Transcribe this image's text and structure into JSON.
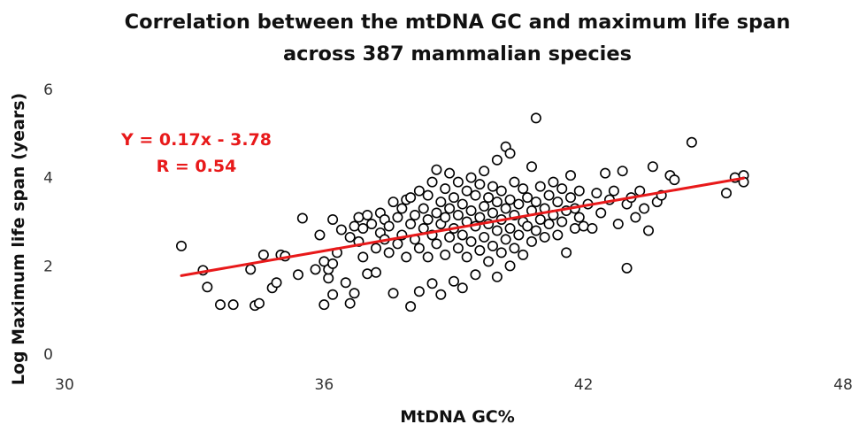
{
  "chart_data": {
    "type": "scatter",
    "title_line1": "Correlation between the mtDNA GC and maximum life span",
    "title_line2": "across 387 mammalian species",
    "xlabel": "MtDNA GC%",
    "ylabel": "Log Maximum life span (years)",
    "xlim": [
      30,
      48
    ],
    "ylim": [
      0,
      6
    ],
    "x_ticks": [
      30,
      36,
      42,
      48
    ],
    "y_ticks": [
      0,
      2,
      4,
      6
    ],
    "grid": false,
    "legend": "none",
    "point_style": "hollow circle",
    "colors": {
      "points": "#000000",
      "fit_line": "#e8191a",
      "annotation": "#e8191a"
    },
    "annotation_line1": "Y = 0.17x - 3.78",
    "annotation_line2": "R = 0.54",
    "fit_line": {
      "slope": 0.17,
      "intercept": -3.78,
      "x_range": [
        32.7,
        45.7
      ]
    },
    "points": [
      [
        32.7,
        2.45
      ],
      [
        33.2,
        1.9
      ],
      [
        33.3,
        1.52
      ],
      [
        33.6,
        1.12
      ],
      [
        33.9,
        1.12
      ],
      [
        34.3,
        1.92
      ],
      [
        34.4,
        1.1
      ],
      [
        34.5,
        1.15
      ],
      [
        34.6,
        2.25
      ],
      [
        34.8,
        1.5
      ],
      [
        34.9,
        1.62
      ],
      [
        35.0,
        2.25
      ],
      [
        35.1,
        2.22
      ],
      [
        35.4,
        1.8
      ],
      [
        35.5,
        3.08
      ],
      [
        35.8,
        1.92
      ],
      [
        35.9,
        2.7
      ],
      [
        36.0,
        2.1
      ],
      [
        36.0,
        1.12
      ],
      [
        36.1,
        1.72
      ],
      [
        36.1,
        1.92
      ],
      [
        36.2,
        1.35
      ],
      [
        36.2,
        2.05
      ],
      [
        36.2,
        3.05
      ],
      [
        36.3,
        2.3
      ],
      [
        36.4,
        2.82
      ],
      [
        36.5,
        1.62
      ],
      [
        36.6,
        2.65
      ],
      [
        36.6,
        1.15
      ],
      [
        36.7,
        2.9
      ],
      [
        36.7,
        1.38
      ],
      [
        36.8,
        3.1
      ],
      [
        36.8,
        2.55
      ],
      [
        36.9,
        2.85
      ],
      [
        36.9,
        2.2
      ],
      [
        37.0,
        1.82
      ],
      [
        37.0,
        3.15
      ],
      [
        37.1,
        2.95
      ],
      [
        37.2,
        2.4
      ],
      [
        37.2,
        1.85
      ],
      [
        37.3,
        2.75
      ],
      [
        37.3,
        3.2
      ],
      [
        37.4,
        2.6
      ],
      [
        37.4,
        3.05
      ],
      [
        37.5,
        2.3
      ],
      [
        37.5,
        2.9
      ],
      [
        37.6,
        3.45
      ],
      [
        37.6,
        1.38
      ],
      [
        37.7,
        2.5
      ],
      [
        37.7,
        3.1
      ],
      [
        37.8,
        2.7
      ],
      [
        37.8,
        3.3
      ],
      [
        37.9,
        2.2
      ],
      [
        37.9,
        3.5
      ],
      [
        38.0,
        1.08
      ],
      [
        38.0,
        2.95
      ],
      [
        38.0,
        3.55
      ],
      [
        38.1,
        2.6
      ],
      [
        38.1,
        3.15
      ],
      [
        38.2,
        1.42
      ],
      [
        38.2,
        2.4
      ],
      [
        38.2,
        3.7
      ],
      [
        38.3,
        2.85
      ],
      [
        38.3,
        3.3
      ],
      [
        38.4,
        2.2
      ],
      [
        38.4,
        3.05
      ],
      [
        38.4,
        3.6
      ],
      [
        38.5,
        1.6
      ],
      [
        38.5,
        2.7
      ],
      [
        38.5,
        3.9
      ],
      [
        38.6,
        2.5
      ],
      [
        38.6,
        3.2
      ],
      [
        38.6,
        4.18
      ],
      [
        38.7,
        1.35
      ],
      [
        38.7,
        2.95
      ],
      [
        38.7,
        3.45
      ],
      [
        38.8,
        2.25
      ],
      [
        38.8,
        3.1
      ],
      [
        38.8,
        3.75
      ],
      [
        38.9,
        2.65
      ],
      [
        38.9,
        3.3
      ],
      [
        38.9,
        4.1
      ],
      [
        39.0,
        1.65
      ],
      [
        39.0,
        2.85
      ],
      [
        39.0,
        3.55
      ],
      [
        39.1,
        2.4
      ],
      [
        39.1,
        3.15
      ],
      [
        39.1,
        3.9
      ],
      [
        39.2,
        1.5
      ],
      [
        39.2,
        2.7
      ],
      [
        39.2,
        3.4
      ],
      [
        39.3,
        2.2
      ],
      [
        39.3,
        3.0
      ],
      [
        39.3,
        3.7
      ],
      [
        39.4,
        2.55
      ],
      [
        39.4,
        3.25
      ],
      [
        39.4,
        4.0
      ],
      [
        39.5,
        1.8
      ],
      [
        39.5,
        2.9
      ],
      [
        39.5,
        3.6
      ],
      [
        39.6,
        2.35
      ],
      [
        39.6,
        3.1
      ],
      [
        39.6,
        3.85
      ],
      [
        39.7,
        2.65
      ],
      [
        39.7,
        3.35
      ],
      [
        39.7,
        4.15
      ],
      [
        39.8,
        2.1
      ],
      [
        39.8,
        2.95
      ],
      [
        39.8,
        3.55
      ],
      [
        39.9,
        2.45
      ],
      [
        39.9,
        3.2
      ],
      [
        39.9,
        3.8
      ],
      [
        40.0,
        1.75
      ],
      [
        40.0,
        2.8
      ],
      [
        40.0,
        3.45
      ],
      [
        40.0,
        4.4
      ],
      [
        40.1,
        2.3
      ],
      [
        40.1,
        3.05
      ],
      [
        40.1,
        3.7
      ],
      [
        40.2,
        2.6
      ],
      [
        40.2,
        3.3
      ],
      [
        40.2,
        4.7
      ],
      [
        40.3,
        2.0
      ],
      [
        40.3,
        2.85
      ],
      [
        40.3,
        3.5
      ],
      [
        40.3,
        4.55
      ],
      [
        40.4,
        2.4
      ],
      [
        40.4,
        3.15
      ],
      [
        40.4,
        3.9
      ],
      [
        40.5,
        2.7
      ],
      [
        40.5,
        3.4
      ],
      [
        40.6,
        2.25
      ],
      [
        40.6,
        3.0
      ],
      [
        40.6,
        3.75
      ],
      [
        40.7,
        2.9
      ],
      [
        40.7,
        3.55
      ],
      [
        40.8,
        2.55
      ],
      [
        40.8,
        3.25
      ],
      [
        40.8,
        4.25
      ],
      [
        40.9,
        2.8
      ],
      [
        40.9,
        3.45
      ],
      [
        40.9,
        5.35
      ],
      [
        41.0,
        3.05
      ],
      [
        41.0,
        3.8
      ],
      [
        41.1,
        2.65
      ],
      [
        41.1,
        3.3
      ],
      [
        41.2,
        2.95
      ],
      [
        41.2,
        3.6
      ],
      [
        41.3,
        3.15
      ],
      [
        41.3,
        3.9
      ],
      [
        41.4,
        2.7
      ],
      [
        41.4,
        3.45
      ],
      [
        41.5,
        3.0
      ],
      [
        41.5,
        3.75
      ],
      [
        41.6,
        2.3
      ],
      [
        41.6,
        3.25
      ],
      [
        41.7,
        3.55
      ],
      [
        41.7,
        4.05
      ],
      [
        41.8,
        2.85
      ],
      [
        41.8,
        3.3
      ],
      [
        41.9,
        3.1
      ],
      [
        41.9,
        3.7
      ],
      [
        42.0,
        2.9
      ],
      [
        42.1,
        3.4
      ],
      [
        42.2,
        2.85
      ],
      [
        42.3,
        3.65
      ],
      [
        42.4,
        3.2
      ],
      [
        42.5,
        4.1
      ],
      [
        42.6,
        3.5
      ],
      [
        42.7,
        3.7
      ],
      [
        42.8,
        2.95
      ],
      [
        42.9,
        4.15
      ],
      [
        43.0,
        3.4
      ],
      [
        43.0,
        1.95
      ],
      [
        43.1,
        3.55
      ],
      [
        43.2,
        3.1
      ],
      [
        43.3,
        3.7
      ],
      [
        43.4,
        3.3
      ],
      [
        43.5,
        2.8
      ],
      [
        43.6,
        4.25
      ],
      [
        43.7,
        3.45
      ],
      [
        43.8,
        3.6
      ],
      [
        44.0,
        4.05
      ],
      [
        44.1,
        3.95
      ],
      [
        44.5,
        4.8
      ],
      [
        45.3,
        3.65
      ],
      [
        45.5,
        4.0
      ],
      [
        45.7,
        4.05
      ],
      [
        45.7,
        3.9
      ]
    ]
  }
}
